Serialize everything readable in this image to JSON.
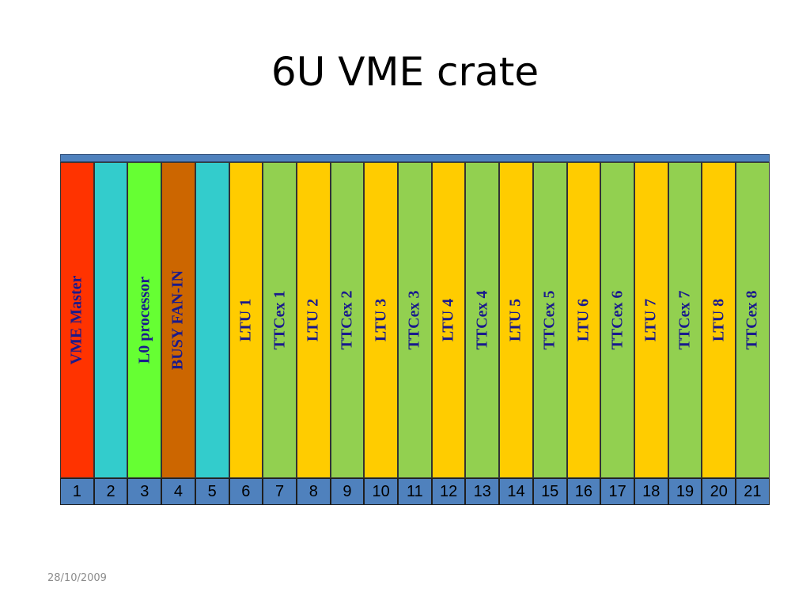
{
  "title": "6U VME crate",
  "date": "28/10/2009",
  "colors": {
    "red": "#ff3300",
    "cyan": "#33cccc",
    "bright_green": "#66ff33",
    "brown": "#cc6600",
    "yellow": "#ffcc00",
    "green": "#92d050",
    "rail_blue": "#4f81bd"
  },
  "slots": [
    {
      "number": "1",
      "label": "VME Master",
      "bg": "#ff3300",
      "text_color": "#1a1a8c"
    },
    {
      "number": "2",
      "label": "",
      "bg": "#33cccc",
      "text_color": "#1a1a8c"
    },
    {
      "number": "3",
      "label": "L0 processor",
      "bg": "#66ff33",
      "text_color": "#1a1a8c"
    },
    {
      "number": "4",
      "label": "BUSY FAN-IN",
      "bg": "#cc6600",
      "text_color": "#1a1a8c"
    },
    {
      "number": "5",
      "label": "",
      "bg": "#33cccc",
      "text_color": "#1a1a8c"
    },
    {
      "number": "6",
      "label": "LTU 1",
      "bg": "#ffcc00",
      "text_color": "#1a1a8c"
    },
    {
      "number": "7",
      "label": "TTCex 1",
      "bg": "#92d050",
      "text_color": "#1a1a8c"
    },
    {
      "number": "8",
      "label": "LTU 2",
      "bg": "#ffcc00",
      "text_color": "#1a1a8c"
    },
    {
      "number": "9",
      "label": "TTCex 2",
      "bg": "#92d050",
      "text_color": "#1a1a8c"
    },
    {
      "number": "10",
      "label": "LTU 3",
      "bg": "#ffcc00",
      "text_color": "#1a1a8c"
    },
    {
      "number": "11",
      "label": "TTCex 3",
      "bg": "#92d050",
      "text_color": "#1a1a8c"
    },
    {
      "number": "12",
      "label": "LTU 4",
      "bg": "#ffcc00",
      "text_color": "#1a1a8c"
    },
    {
      "number": "13",
      "label": "TTCex 4",
      "bg": "#92d050",
      "text_color": "#1a1a8c"
    },
    {
      "number": "14",
      "label": "LTU 5",
      "bg": "#ffcc00",
      "text_color": "#1a1a8c"
    },
    {
      "number": "15",
      "label": "TTCex 5",
      "bg": "#92d050",
      "text_color": "#1a1a8c"
    },
    {
      "number": "16",
      "label": "LTU 6",
      "bg": "#ffcc00",
      "text_color": "#1a1a8c"
    },
    {
      "number": "17",
      "label": "TTCex 6",
      "bg": "#92d050",
      "text_color": "#1a1a8c"
    },
    {
      "number": "18",
      "label": "LTU 7",
      "bg": "#ffcc00",
      "text_color": "#1a1a8c"
    },
    {
      "number": "19",
      "label": "TTCex 7",
      "bg": "#92d050",
      "text_color": "#1a1a8c"
    },
    {
      "number": "20",
      "label": "LTU 8",
      "bg": "#ffcc00",
      "text_color": "#1a1a8c"
    },
    {
      "number": "21",
      "label": "TTCex 8",
      "bg": "#92d050",
      "text_color": "#1a1a8c"
    }
  ]
}
